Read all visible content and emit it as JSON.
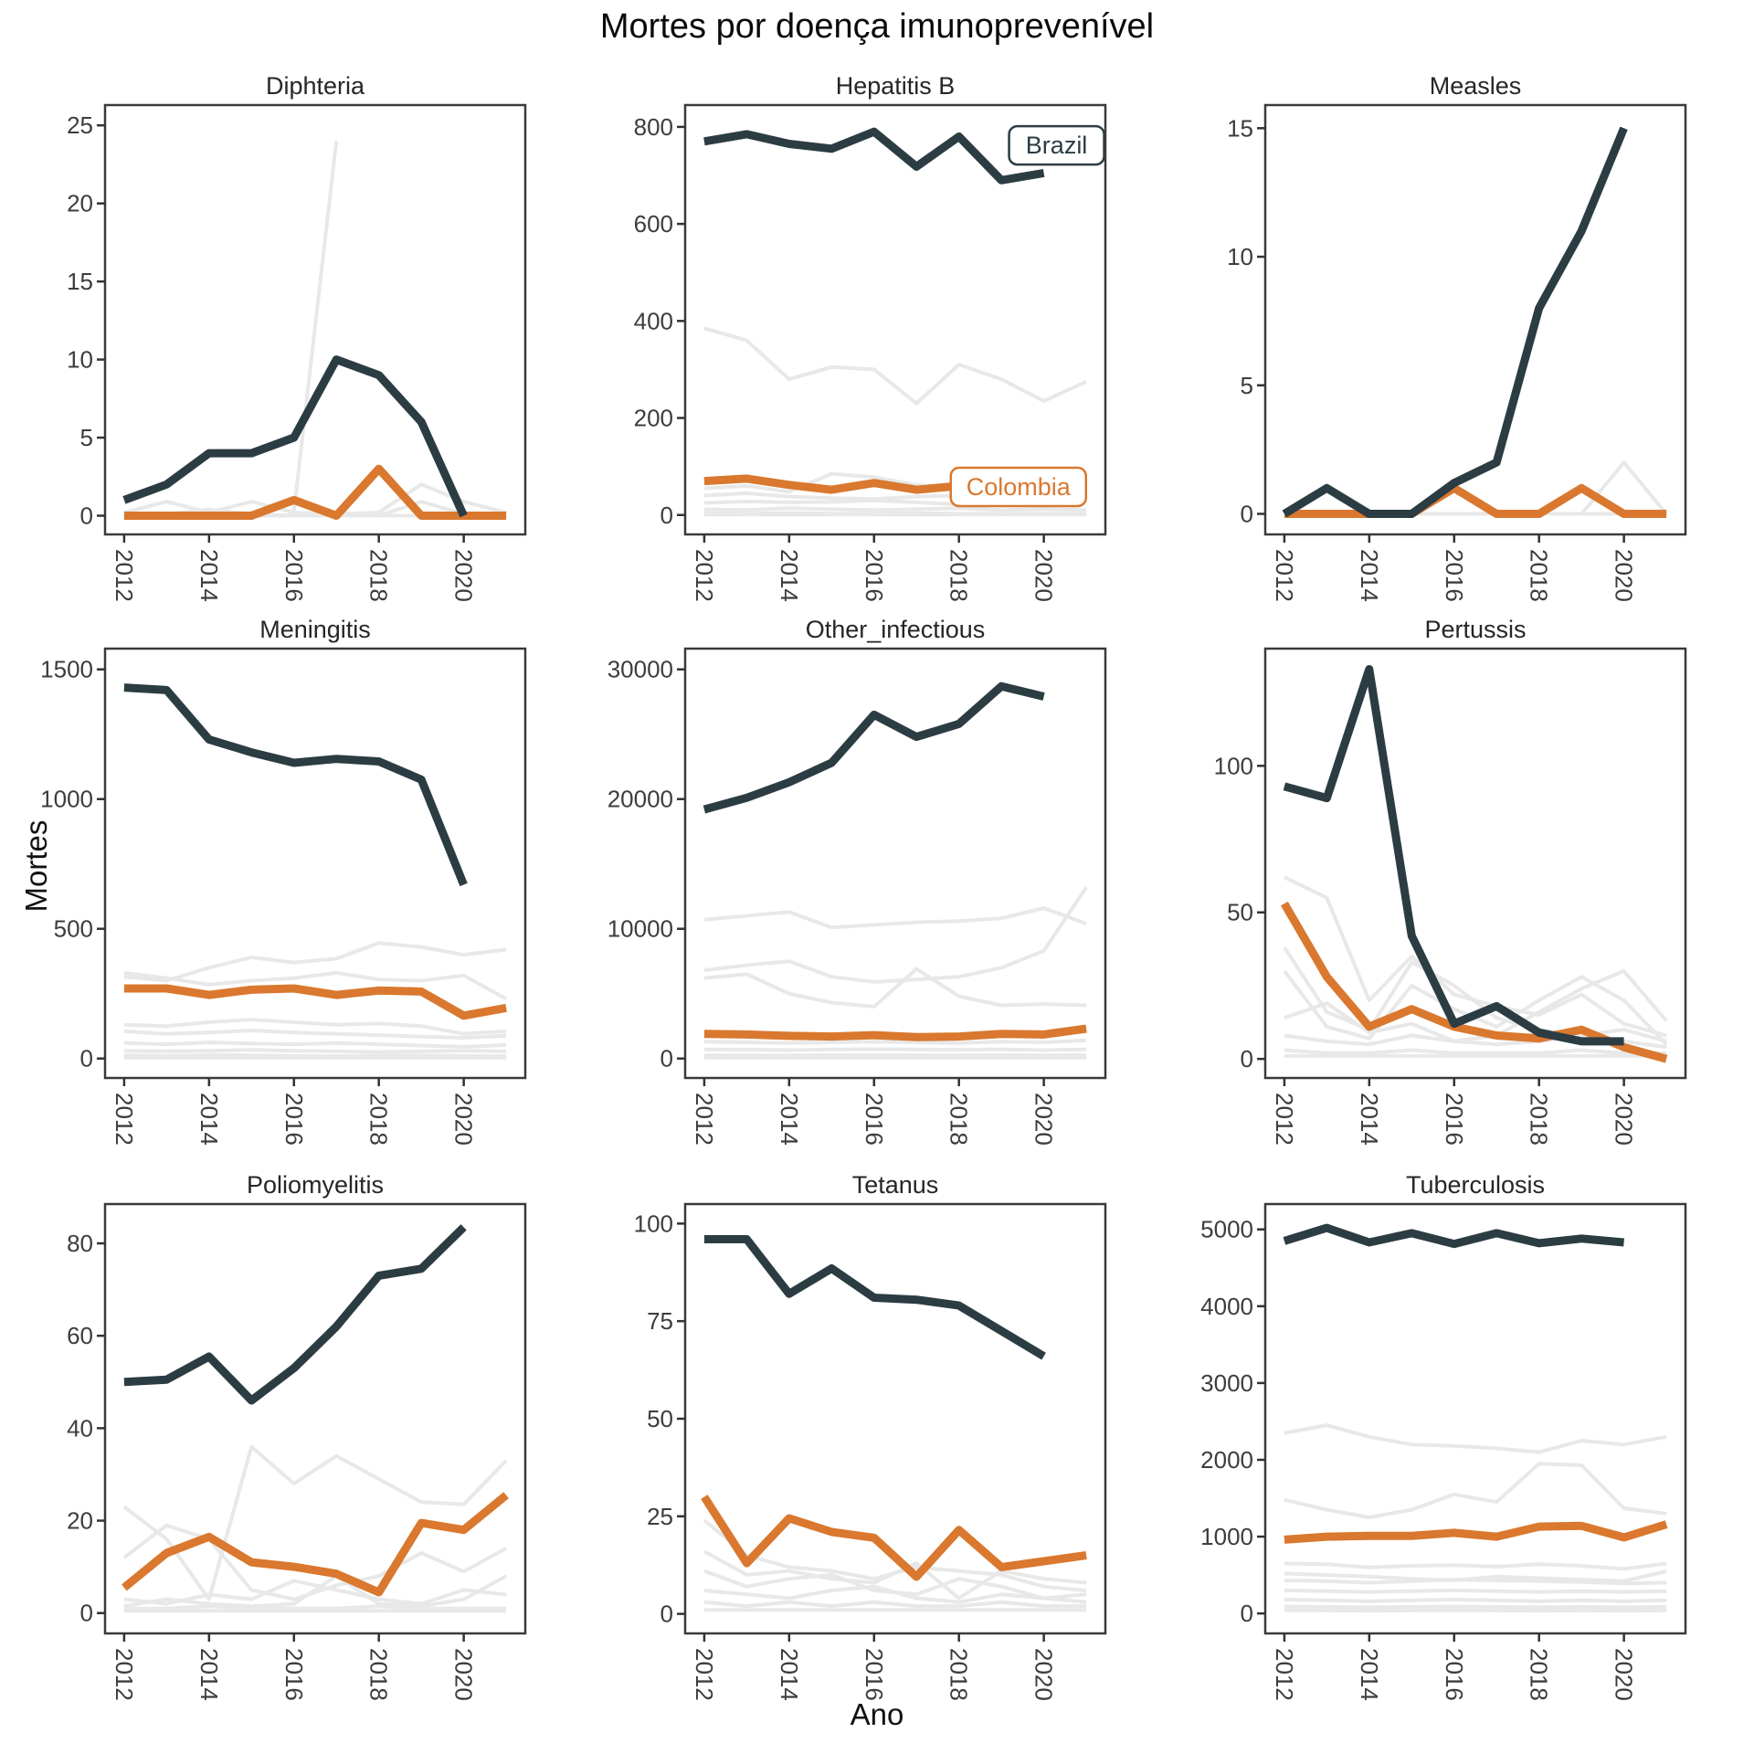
{
  "title": "Mortes por doença imunoprevenível",
  "axis": {
    "x_label": "Ano",
    "y_label": "Mortes"
  },
  "colors": {
    "brazil": "#2c3c43",
    "colombia": "#d9782e",
    "other": "#e8e8e8",
    "panel_border": "#3a3a3a",
    "tick": "#333333"
  },
  "years": [
    2012,
    2013,
    2014,
    2015,
    2016,
    2017,
    2018,
    2019,
    2020,
    2021
  ],
  "x_ticks": [
    2012,
    2014,
    2016,
    2018,
    2020
  ],
  "chart_data": [
    {
      "type": "line",
      "title": "Diphteria",
      "ylim": [
        -1.2,
        26.3
      ],
      "yticks": [
        0,
        5,
        10,
        15,
        20,
        25
      ],
      "series": [
        {
          "name": "Brazil",
          "key": "brazil",
          "values": [
            1,
            2,
            4,
            4,
            5,
            10,
            9,
            6,
            0,
            null
          ]
        },
        {
          "name": "Colombia",
          "key": "colombia",
          "values": [
            0,
            0,
            0,
            0,
            1,
            0,
            3,
            0,
            0,
            0
          ]
        }
      ],
      "others": [
        [
          null,
          null,
          null,
          null,
          0.3,
          24,
          null,
          null,
          null,
          null
        ],
        [
          0.2,
          0.9,
          0.2,
          0.9,
          0.2,
          0.1,
          0.2,
          2,
          0.9,
          0.2
        ],
        [
          0,
          0.1,
          0.4,
          0.1,
          0,
          0.2,
          0,
          0.9,
          0.1,
          0
        ],
        [
          0,
          0,
          0,
          0,
          0,
          0,
          0,
          0,
          0,
          0
        ]
      ]
    },
    {
      "type": "line",
      "title": "Hepatitis B",
      "ylim": [
        -40,
        845
      ],
      "yticks": [
        0,
        200,
        400,
        600,
        800
      ],
      "series": [
        {
          "name": "Brazil",
          "key": "brazil",
          "values": [
            770,
            785,
            765,
            755,
            790,
            718,
            780,
            690,
            705,
            null
          ]
        },
        {
          "name": "Colombia",
          "key": "colombia",
          "values": [
            70,
            75,
            62,
            52,
            66,
            52,
            60,
            57,
            55,
            65
          ]
        }
      ],
      "others": [
        [
          385,
          360,
          280,
          305,
          300,
          230,
          310,
          280,
          235,
          275
        ],
        [
          55,
          60,
          48,
          85,
          78,
          62,
          55,
          50,
          45,
          42
        ],
        [
          40,
          45,
          38,
          35,
          33,
          38,
          40,
          36,
          28,
          33
        ],
        [
          25,
          28,
          26,
          27,
          30,
          26,
          22,
          26,
          28,
          30
        ],
        [
          12,
          10,
          14,
          12,
          10,
          12,
          14,
          10,
          12,
          10
        ],
        [
          4,
          3,
          4,
          3,
          3,
          4,
          3,
          3,
          3,
          3
        ],
        [
          1,
          1,
          1,
          1,
          1,
          1,
          1,
          1,
          1,
          1
        ]
      ],
      "annotations": [
        {
          "label": "Brazil",
          "series": "brazil",
          "x_year": 2020.3,
          "y_value": 762,
          "w": 104,
          "h": 42
        },
        {
          "label": "Colombia",
          "series": "colombia",
          "x_year": 2019.4,
          "y_value": 58,
          "w": 148,
          "h": 42
        }
      ]
    },
    {
      "type": "line",
      "title": "Measles",
      "ylim": [
        -0.8,
        15.9
      ],
      "yticks": [
        0,
        5,
        10,
        15
      ],
      "series": [
        {
          "name": "Brazil",
          "key": "brazil",
          "values": [
            0,
            1,
            0,
            0,
            1.2,
            2,
            8,
            11,
            15,
            null
          ]
        },
        {
          "name": "Colombia",
          "key": "colombia",
          "values": [
            0,
            0,
            0,
            0,
            1,
            0,
            0,
            1,
            0,
            0
          ]
        }
      ],
      "others": [
        [
          0,
          0,
          0,
          0,
          0,
          0,
          0,
          0,
          2,
          0
        ],
        [
          0,
          0,
          0,
          0,
          0,
          0,
          0,
          0,
          0,
          0
        ]
      ]
    },
    {
      "type": "line",
      "title": "Meningitis",
      "ylim": [
        -75,
        1580
      ],
      "yticks": [
        0,
        500,
        1000,
        1500
      ],
      "series": [
        {
          "name": "Brazil",
          "key": "brazil",
          "values": [
            1430,
            1420,
            1230,
            1180,
            1140,
            1155,
            1145,
            1075,
            670,
            null
          ]
        },
        {
          "name": "Colombia",
          "key": "colombia",
          "values": [
            270,
            270,
            245,
            265,
            270,
            245,
            262,
            258,
            165,
            195
          ]
        }
      ],
      "others": [
        [
          315,
          300,
          350,
          390,
          370,
          385,
          445,
          430,
          400,
          420
        ],
        [
          330,
          310,
          285,
          300,
          310,
          330,
          305,
          300,
          320,
          230
        ],
        [
          130,
          125,
          140,
          150,
          140,
          130,
          135,
          125,
          95,
          105
        ],
        [
          105,
          95,
          100,
          108,
          100,
          95,
          90,
          85,
          80,
          88
        ],
        [
          60,
          55,
          62,
          58,
          55,
          60,
          55,
          50,
          45,
          52
        ],
        [
          30,
          28,
          30,
          33,
          30,
          28,
          25,
          28,
          30,
          28
        ],
        [
          12,
          10,
          13,
          12,
          10,
          9,
          11,
          12,
          10,
          9
        ],
        [
          3,
          3,
          3,
          3,
          3,
          3,
          3,
          3,
          3,
          3
        ]
      ]
    },
    {
      "type": "line",
      "title": "Other_infectious",
      "ylim": [
        -1500,
        31600
      ],
      "yticks": [
        0,
        10000,
        20000,
        30000
      ],
      "series": [
        {
          "name": "Brazil",
          "key": "brazil",
          "values": [
            19200,
            20100,
            21300,
            22800,
            26500,
            24800,
            25800,
            28700,
            27900,
            null
          ]
        },
        {
          "name": "Colombia",
          "key": "colombia",
          "values": [
            1900,
            1850,
            1750,
            1700,
            1800,
            1650,
            1700,
            1900,
            1850,
            2300
          ]
        }
      ],
      "others": [
        [
          10700,
          11000,
          11300,
          10100,
          10300,
          10500,
          10600,
          10800,
          11600,
          10400
        ],
        [
          6800,
          7200,
          7500,
          6300,
          5900,
          6100,
          6300,
          7000,
          8300,
          13200
        ],
        [
          6200,
          6500,
          5000,
          4300,
          4000,
          6900,
          4800,
          4100,
          4200,
          4100
        ],
        [
          1300,
          1250,
          1200,
          1250,
          1300,
          1250,
          1200,
          1300,
          1250,
          1400
        ],
        [
          700,
          680,
          650,
          700,
          720,
          700,
          680,
          700,
          650,
          700
        ],
        [
          250,
          240,
          250,
          260,
          250,
          240,
          250,
          260,
          250,
          260
        ],
        [
          80,
          80,
          80,
          80,
          80,
          80,
          80,
          80,
          80,
          80
        ]
      ]
    },
    {
      "type": "line",
      "title": "Pertussis",
      "ylim": [
        -6.5,
        140
      ],
      "yticks": [
        0,
        50,
        100
      ],
      "series": [
        {
          "name": "Brazil",
          "key": "brazil",
          "values": [
            93,
            89,
            133,
            42,
            12,
            18,
            9,
            6,
            6,
            null
          ]
        },
        {
          "name": "Colombia",
          "key": "colombia",
          "values": [
            53,
            28,
            11,
            17,
            11,
            8,
            7,
            10,
            4,
            0
          ]
        }
      ],
      "others": [
        [
          62,
          55,
          20,
          35,
          22,
          18,
          15,
          22,
          12,
          8
        ],
        [
          38,
          16,
          10,
          33,
          25,
          14,
          10,
          8,
          10,
          6
        ],
        [
          30,
          11,
          7,
          25,
          17,
          11,
          20,
          28,
          20,
          5
        ],
        [
          14,
          19,
          9,
          12,
          6,
          8,
          16,
          24,
          30,
          13
        ],
        [
          8,
          6,
          5,
          8,
          6,
          5,
          6,
          8,
          6,
          4
        ],
        [
          3,
          2,
          2,
          3,
          2,
          2,
          2,
          3,
          2,
          2
        ],
        [
          1,
          1,
          1,
          1,
          1,
          1,
          1,
          1,
          1,
          1
        ]
      ]
    },
    {
      "type": "line",
      "title": "Poliomyelitis",
      "ylim": [
        -4.4,
        88.5
      ],
      "yticks": [
        0,
        20,
        40,
        60,
        80
      ],
      "series": [
        {
          "name": "Brazil",
          "key": "brazil",
          "values": [
            50,
            50.5,
            55.5,
            46,
            53,
            62,
            73,
            74.5,
            83.5,
            null
          ]
        },
        {
          "name": "Colombia",
          "key": "colombia",
          "values": [
            5.5,
            13,
            16.5,
            11,
            10,
            8.5,
            4.5,
            19.5,
            18,
            25.5
          ]
        }
      ],
      "others": [
        [
          23,
          16,
          3,
          36,
          28,
          34,
          29,
          24,
          23.5,
          33
        ],
        [
          12,
          19,
          16,
          5,
          3,
          6,
          8,
          13,
          9,
          14
        ],
        [
          3,
          2,
          4,
          3,
          7,
          5,
          3,
          2,
          5,
          4
        ],
        [
          1.5,
          3,
          2,
          1.5,
          2,
          8,
          2,
          1.5,
          3,
          8
        ],
        [
          1,
          1,
          1.5,
          1,
          1,
          1,
          1.5,
          1,
          1,
          1
        ],
        [
          0.5,
          0.5,
          0.5,
          0.5,
          0.5,
          0.5,
          0.5,
          0.5,
          0.5,
          0.5
        ]
      ]
    },
    {
      "type": "line",
      "title": "Tetanus",
      "ylim": [
        -5,
        105
      ],
      "yticks": [
        0,
        25,
        50,
        75,
        100
      ],
      "series": [
        {
          "name": "Brazil",
          "key": "brazil",
          "values": [
            96,
            96,
            82,
            88.5,
            81,
            80.5,
            79,
            72.5,
            66,
            null
          ]
        },
        {
          "name": "Colombia",
          "key": "colombia",
          "values": [
            30,
            13,
            24.5,
            21,
            19.5,
            9.5,
            21.5,
            12,
            13.5,
            15
          ]
        }
      ],
      "others": [
        [
          24,
          15,
          12,
          11,
          9,
          12,
          11,
          10,
          7,
          6
        ],
        [
          16,
          10,
          11,
          9,
          8,
          13,
          4,
          11,
          9,
          8
        ],
        [
          11,
          7,
          9,
          10,
          6,
          5,
          9,
          7,
          4,
          5
        ],
        [
          6,
          5,
          4,
          6,
          7,
          4,
          3,
          5,
          4,
          3
        ],
        [
          3,
          2,
          3,
          2,
          3,
          2,
          2,
          3,
          2,
          2
        ],
        [
          1,
          1,
          1,
          1,
          1,
          1,
          1,
          1,
          1,
          1
        ]
      ]
    },
    {
      "type": "line",
      "title": "Tuberculosis",
      "ylim": [
        -260,
        5330
      ],
      "yticks": [
        0,
        1000,
        2000,
        3000,
        4000,
        5000
      ],
      "series": [
        {
          "name": "Brazil",
          "key": "brazil",
          "values": [
            4850,
            5020,
            4830,
            4950,
            4810,
            4950,
            4820,
            4880,
            4830,
            null
          ]
        },
        {
          "name": "Colombia",
          "key": "colombia",
          "values": [
            960,
            1000,
            1010,
            1010,
            1050,
            1000,
            1130,
            1140,
            990,
            1160
          ]
        }
      ],
      "others": [
        [
          2350,
          2450,
          2300,
          2200,
          2180,
          2150,
          2100,
          2250,
          2200,
          2300
        ],
        [
          1480,
          1350,
          1250,
          1350,
          1550,
          1450,
          1950,
          1930,
          1370,
          1300
        ],
        [
          650,
          640,
          600,
          620,
          630,
          610,
          640,
          620,
          580,
          650
        ],
        [
          520,
          500,
          480,
          450,
          430,
          480,
          460,
          440,
          420,
          550
        ],
        [
          430,
          420,
          400,
          420,
          440,
          430,
          420,
          410,
          390,
          400
        ],
        [
          300,
          290,
          280,
          290,
          300,
          290,
          280,
          290,
          280,
          290
        ],
        [
          180,
          170,
          160,
          170,
          180,
          170,
          160,
          170,
          160,
          170
        ],
        [
          90,
          85,
          80,
          85,
          90,
          85,
          80,
          85,
          80,
          85
        ],
        [
          40,
          38,
          36,
          38,
          40,
          38,
          36,
          38,
          36,
          38
        ]
      ]
    }
  ]
}
